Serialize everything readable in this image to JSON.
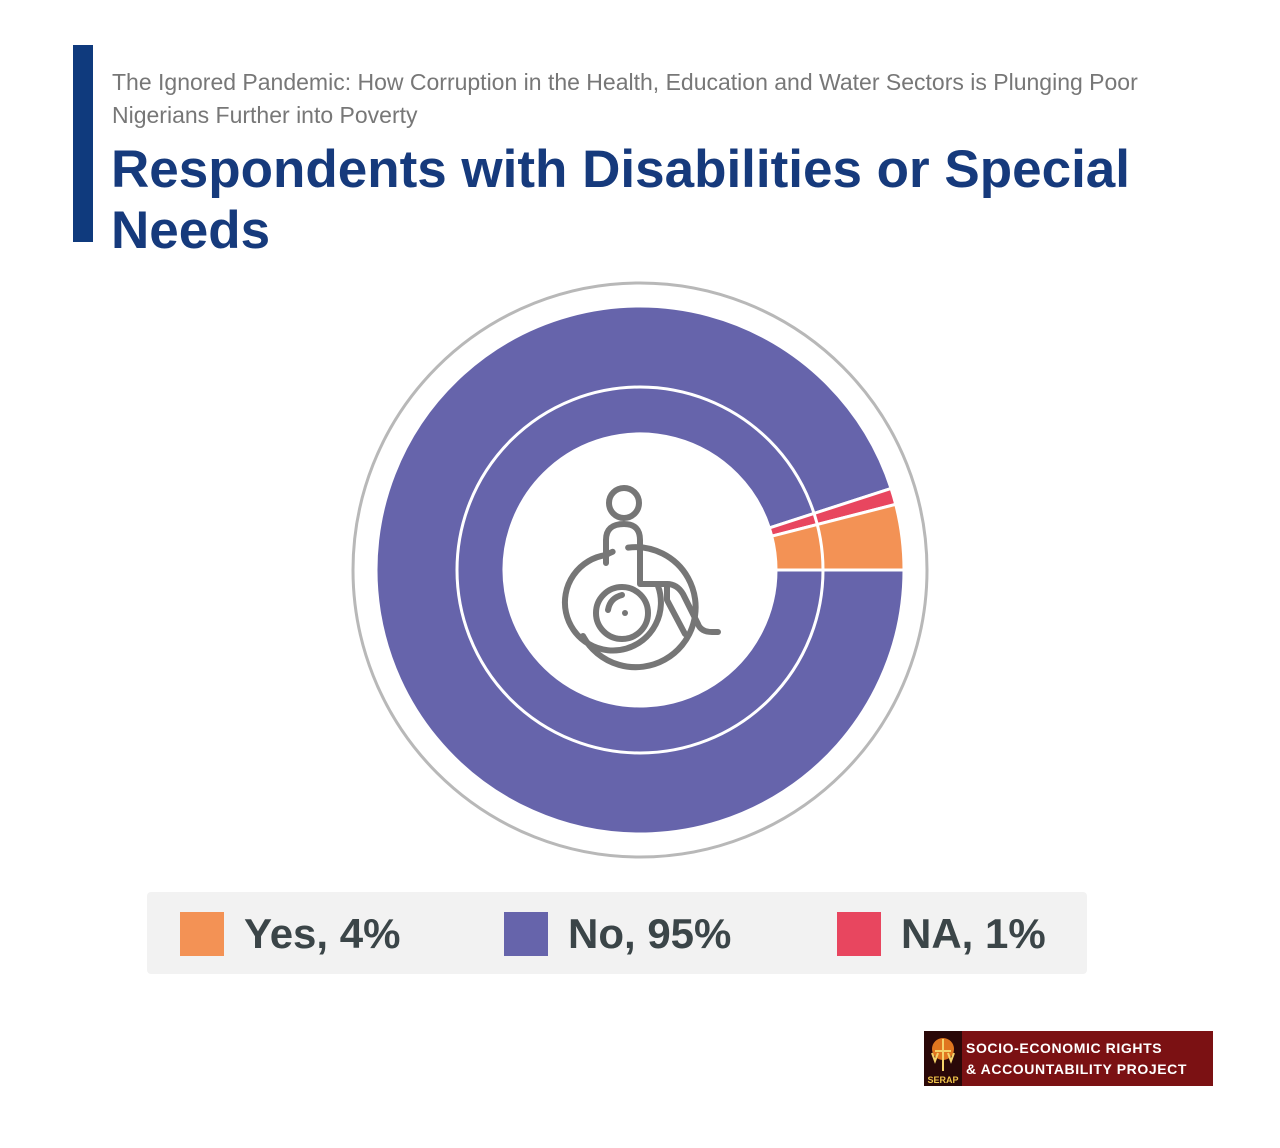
{
  "header": {
    "subtitle": "The Ignored Pandemic: How Corruption in the Health, Education and Water Sectors is Plunging Poor Nigerians Further into Poverty",
    "title": "Respondents with Disabilities or Special Needs"
  },
  "chart_data": {
    "type": "pie",
    "title": "Respondents with Disabilities or Special Needs",
    "categories": [
      "Yes",
      "No",
      "NA"
    ],
    "values": [
      4,
      95,
      1
    ],
    "colors": [
      "#f39255",
      "#6664ab",
      "#e8465f"
    ],
    "center_icon": "wheelchair-icon",
    "legend_position": "bottom"
  },
  "legend": {
    "items": [
      {
        "label": "Yes, 4%",
        "color": "#f39255"
      },
      {
        "label": "No, 95%",
        "color": "#6664ab"
      },
      {
        "label": "NA, 1%",
        "color": "#e8465f"
      }
    ]
  },
  "logo": {
    "emblem_text": "SERAP",
    "line1": "SOCIO-ECONOMIC RIGHTS",
    "line2": "& ACCOUNTABILITY PROJECT"
  }
}
